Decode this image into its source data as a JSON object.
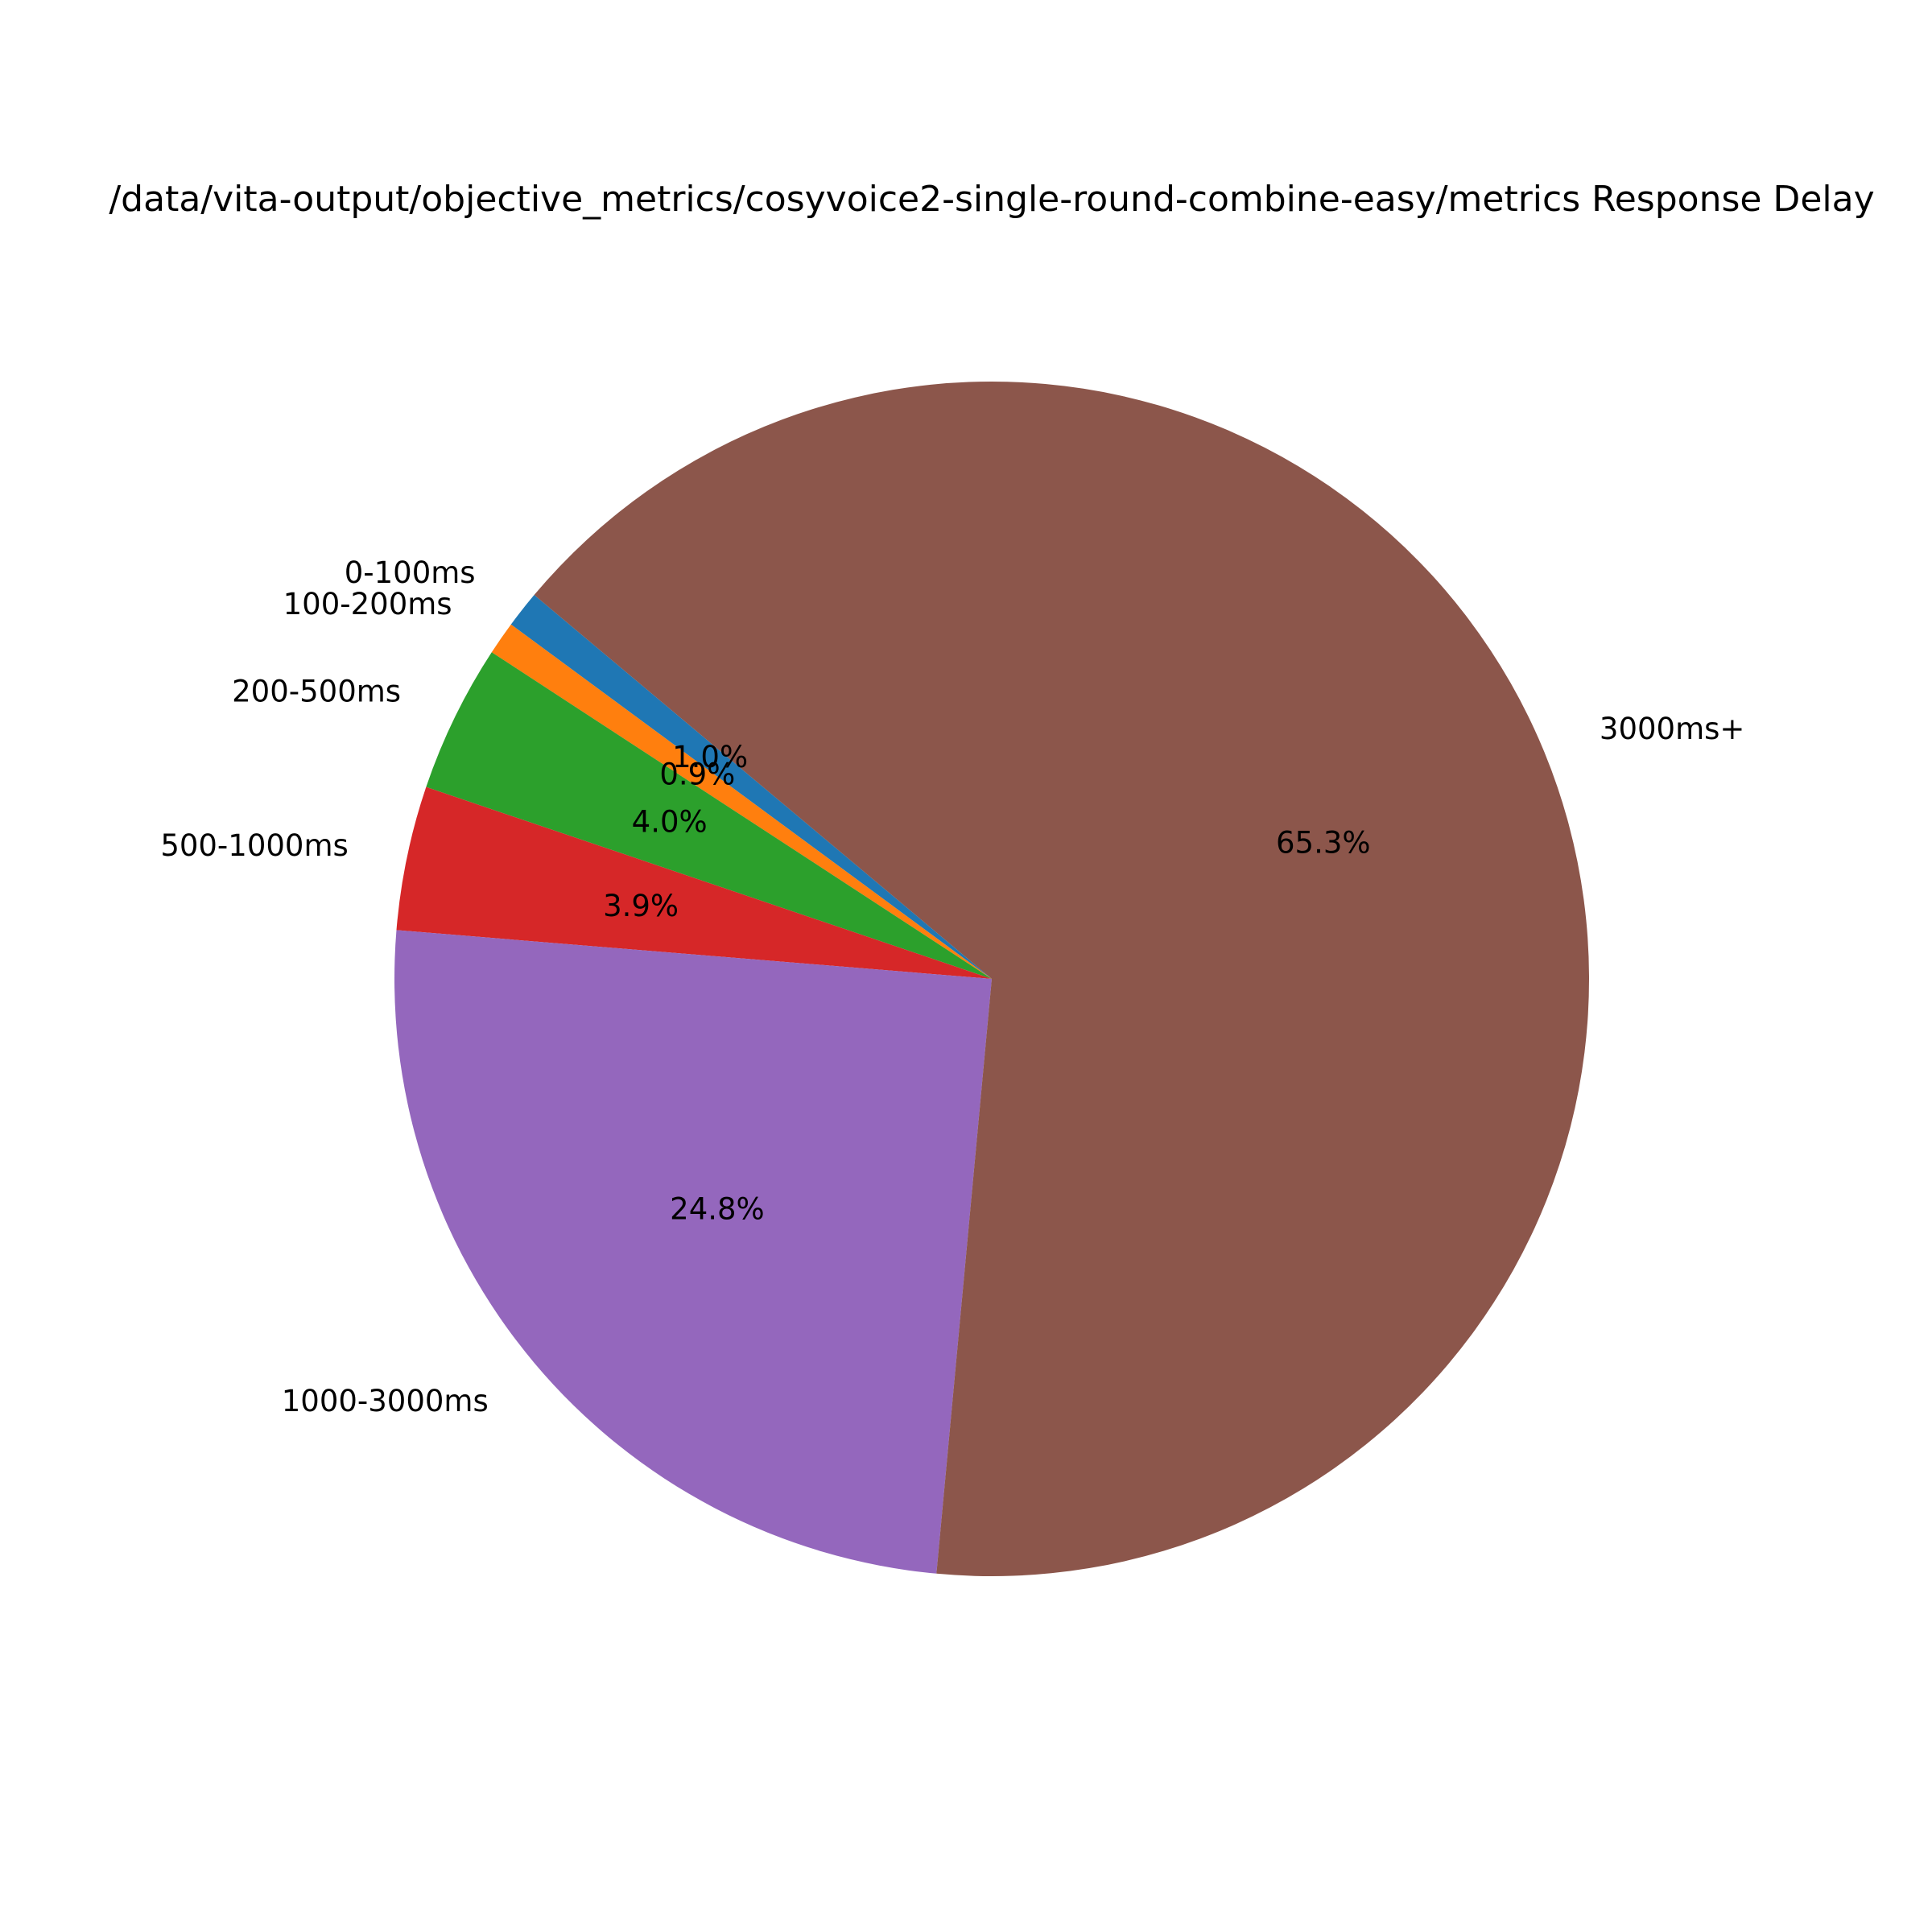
{
  "chart_data": {
    "type": "pie",
    "title": "/data/vita-output/objective_metrics/cosyvoice2-single-round-combine-easy/metrics Response Delay",
    "start_angle_deg": 140,
    "direction": "counterclockwise",
    "slices": [
      {
        "label": "0-100ms",
        "value": 1.0,
        "pct_label": "1.0%",
        "color": "#1f77b4"
      },
      {
        "label": "100-200ms",
        "value": 0.9,
        "pct_label": "0.9%",
        "color": "#ff7f0e"
      },
      {
        "label": "200-500ms",
        "value": 4.0,
        "pct_label": "4.0%",
        "color": "#2ca02c"
      },
      {
        "label": "500-1000ms",
        "value": 3.9,
        "pct_label": "3.9%",
        "color": "#d62728"
      },
      {
        "label": "1000-3000ms",
        "value": 24.8,
        "pct_label": "24.8%",
        "color": "#9467bd"
      },
      {
        "label": "3000ms+",
        "value": 65.3,
        "pct_label": "65.3%",
        "color": "#8c564b"
      }
    ]
  }
}
